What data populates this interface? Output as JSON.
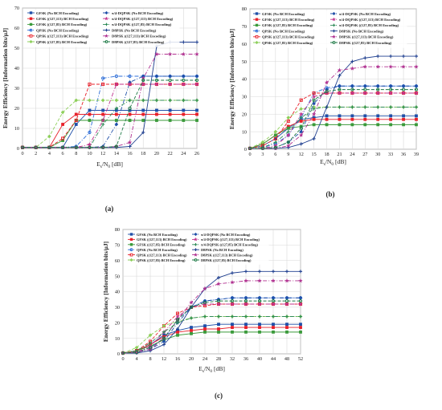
{
  "chart_data": [
    {
      "type": "line",
      "panel_label": "(a)",
      "ylabel": "Energy Efficiency [Information bits/μJ]",
      "xlabel": "E_s/N_0 [dB]",
      "xlabel_main": "E",
      "xlabel_sub1": "s",
      "xlabel_mid": "/N",
      "xlabel_sub2": "0",
      "xlabel_tail": " [dB]",
      "x": [
        0,
        2,
        4,
        6,
        8,
        10,
        12,
        14,
        16,
        18,
        20,
        22,
        24,
        26
      ],
      "xticks": [
        "0",
        "2",
        "4",
        "6",
        "8",
        "10",
        "12",
        "14",
        "16",
        "18",
        "20",
        "22",
        "24",
        "26"
      ],
      "xlim": [
        0,
        26
      ],
      "ylim": [
        0,
        70
      ],
      "yticks": [
        "0",
        "10",
        "20",
        "30",
        "40",
        "50",
        "60",
        "70"
      ],
      "grid": true,
      "legend_position": "top-left",
      "series": [
        {
          "name": "GFSK (No BCH Encoding)",
          "color": "#1f4fa8",
          "marker": "square",
          "dash": "solid",
          "values": [
            0.5,
            0.5,
            0.5,
            0.5,
            12,
            19,
            19,
            19,
            19,
            19,
            19,
            19,
            19,
            19
          ]
        },
        {
          "name": "GFSK ((127,113) BCH Encoding)",
          "color": "#e8202a",
          "marker": "square",
          "dash": "solid",
          "values": [
            0.5,
            0.5,
            0.5,
            12,
            17,
            17,
            17,
            17,
            17,
            17,
            17,
            17,
            17,
            17
          ]
        },
        {
          "name": "GFSK ((127,85) BCH Encoding)",
          "color": "#3a9a3a",
          "marker": "square",
          "dash": "solid",
          "values": [
            0.5,
            0.5,
            0.5,
            4,
            14,
            14,
            14,
            14,
            14,
            14,
            14,
            14,
            14,
            14
          ]
        },
        {
          "name": "QPSK (No BCH Encoding)",
          "color": "#2b6cd8",
          "marker": "circle",
          "dash": "dashdot",
          "values": [
            0.5,
            0.5,
            0.5,
            0.5,
            1,
            8,
            35,
            36,
            36,
            36,
            36,
            36,
            36,
            36
          ]
        },
        {
          "name": "QPSK ((127,113) BCH Encoding)",
          "color": "#e8202a",
          "marker": "square-open",
          "dash": "dashed",
          "values": [
            0.5,
            0.5,
            0.5,
            5,
            14,
            32,
            32,
            32,
            32,
            32,
            32,
            32,
            32,
            32
          ]
        },
        {
          "name": "QPSK ((127,85) BCH Encoding)",
          "color": "#8dcf5a",
          "marker": "diamond",
          "dash": "dashed",
          "values": [
            0.5,
            0.5,
            6,
            18,
            24,
            24,
            24,
            24,
            24,
            24,
            24,
            24,
            24,
            24
          ]
        },
        {
          "name": "π/4-DQPSK (No BCH Encoding)",
          "color": "#1f4fa8",
          "marker": "diamond",
          "dash": "dashdot",
          "values": [
            0.5,
            0.5,
            0.5,
            0.5,
            0.5,
            0.5,
            1,
            12,
            33,
            36,
            36,
            36,
            36,
            36
          ]
        },
        {
          "name": "π/4-DQPSK ((127,113) BCH Encoding)",
          "color": "#c0308c",
          "marker": "star",
          "dash": "dashdot",
          "values": [
            0.5,
            0.5,
            0.5,
            0.5,
            0.5,
            2,
            14,
            32,
            32,
            32,
            32,
            32,
            32,
            32
          ]
        },
        {
          "name": "π/4-DQPSK ((127,85) BCH Encoding)",
          "color": "#2e8b57",
          "marker": "plus",
          "dash": "dashdot",
          "values": [
            0.5,
            0.5,
            0.5,
            0.5,
            0.5,
            0.5,
            12,
            20,
            24,
            24,
            24,
            24,
            24,
            24
          ]
        },
        {
          "name": "D8PSK (No BCH Encoding)",
          "color": "#1f3f8f",
          "marker": "plus",
          "dash": "solid",
          "values": [
            0.5,
            0.5,
            0.5,
            0.5,
            0.5,
            0.5,
            0.5,
            0.5,
            1,
            8,
            51,
            53,
            53,
            53
          ]
        },
        {
          "name": "D8PSK ((127,113) BCH Encoding)",
          "color": "#b03090",
          "marker": "star",
          "dash": "dashdot",
          "values": [
            0.5,
            0.5,
            0.5,
            0.5,
            0.5,
            0.5,
            0.5,
            1,
            3,
            35,
            47,
            47,
            47,
            47
          ]
        },
        {
          "name": "D8PSK ((127,85) BCH Encoding)",
          "color": "#1e7a46",
          "marker": "circle",
          "dash": "dashed",
          "values": [
            0.5,
            0.5,
            0.5,
            0.5,
            0.5,
            0.5,
            0.5,
            1,
            20,
            34,
            34,
            34,
            34,
            34
          ]
        }
      ]
    },
    {
      "type": "line",
      "panel_label": "(b)",
      "ylabel": "Energy Efficiency [Information bits/μJ]",
      "xlabel": "E_s/N_0 [dB]",
      "xlabel_main": "E",
      "xlabel_sub1": "s",
      "xlabel_mid": "/N",
      "xlabel_sub2": "0",
      "xlabel_tail": " [dB]",
      "x": [
        0,
        3,
        6,
        9,
        12,
        15,
        18,
        21,
        24,
        27,
        30,
        33,
        36,
        39
      ],
      "xticks": [
        "0",
        "3",
        "6",
        "9",
        "12",
        "15",
        "18",
        "21",
        "24",
        "27",
        "30",
        "33",
        "36",
        "39"
      ],
      "xlim": [
        0,
        39
      ],
      "ylim": [
        0,
        80
      ],
      "yticks": [
        "0",
        "10",
        "20",
        "30",
        "40",
        "50",
        "60",
        "70",
        "80"
      ],
      "grid": true,
      "legend_position": "top-left",
      "series": [
        {
          "name": "GFSK (No BCH Encoding)",
          "color": "#1f4fa8",
          "marker": "square",
          "dash": "solid",
          "values": [
            0.5,
            2,
            6,
            12,
            17,
            18,
            19,
            19,
            19,
            19,
            19,
            19,
            19,
            19
          ]
        },
        {
          "name": "GFSK ((127,113) BCH Encoding)",
          "color": "#e8202a",
          "marker": "square",
          "dash": "solid",
          "values": [
            0.5,
            3,
            8,
            13,
            16,
            17,
            17,
            17,
            17,
            17,
            17,
            17,
            17,
            17
          ]
        },
        {
          "name": "GFSK ((127,85) BCH Encoding)",
          "color": "#3a9a3a",
          "marker": "square",
          "dash": "solid",
          "values": [
            0.5,
            3,
            8,
            12,
            13,
            14,
            14,
            14,
            14,
            14,
            14,
            14,
            14,
            14
          ]
        },
        {
          "name": "QPSK (No BCH Encoding)",
          "color": "#2b6cd8",
          "marker": "circle",
          "dash": "dashdot",
          "values": [
            0.5,
            1,
            3,
            8,
            18,
            32,
            35,
            36,
            36,
            36,
            36,
            36,
            36,
            36
          ]
        },
        {
          "name": "QPSK ((127,113) BCH Encoding)",
          "color": "#e8202a",
          "marker": "square-open",
          "dash": "dashed",
          "values": [
            0.5,
            2,
            6,
            16,
            28,
            32,
            32,
            32,
            32,
            32,
            32,
            32,
            32,
            32
          ]
        },
        {
          "name": "QPSK ((127,85) BCH Encoding)",
          "color": "#8dcf5a",
          "marker": "diamond",
          "dash": "dashed",
          "values": [
            0.5,
            4,
            10,
            18,
            23,
            24,
            24,
            24,
            24,
            24,
            24,
            24,
            24,
            24
          ]
        },
        {
          "name": "π/4-DQPSK (No BCH Encoding)",
          "color": "#1f4fa8",
          "marker": "diamond",
          "dash": "dashdot",
          "values": [
            0.5,
            0.5,
            1,
            4,
            10,
            26,
            34,
            36,
            36,
            36,
            36,
            36,
            36,
            36
          ]
        },
        {
          "name": "π/4-DQPSK ((127,113) BCH Encoding)",
          "color": "#c0308c",
          "marker": "star",
          "dash": "dashdot",
          "values": [
            0.5,
            0.5,
            2,
            8,
            20,
            30,
            32,
            32,
            32,
            32,
            32,
            32,
            32,
            32
          ]
        },
        {
          "name": "π/4-DQPSK ((127,85) BCH Encoding)",
          "color": "#2e8b57",
          "marker": "plus",
          "dash": "dashdot",
          "values": [
            0.5,
            1,
            4,
            10,
            18,
            23,
            24,
            24,
            24,
            24,
            24,
            24,
            24,
            24
          ]
        },
        {
          "name": "D8PSK (No BCH Encoding)",
          "color": "#1f3f8f",
          "marker": "plus",
          "dash": "solid",
          "values": [
            0.5,
            0.5,
            0.5,
            1,
            3,
            6,
            24,
            42,
            50,
            52,
            53,
            53,
            53,
            53
          ]
        },
        {
          "name": "D8PSK ((127,113) BCH Encoding)",
          "color": "#b03090",
          "marker": "star",
          "dash": "dashdot",
          "values": [
            0.5,
            0.5,
            0.5,
            2,
            8,
            20,
            38,
            45,
            46,
            47,
            47,
            47,
            47,
            47
          ]
        },
        {
          "name": "D8PSK ((127,85) BCH Encoding)",
          "color": "#1e7a46",
          "marker": "circle",
          "dash": "dashed",
          "values": [
            0.5,
            0.5,
            1,
            4,
            12,
            28,
            33,
            34,
            34,
            34,
            34,
            34,
            34,
            34
          ]
        }
      ]
    },
    {
      "type": "line",
      "panel_label": "(c)",
      "ylabel": "Energy Efficiency [Information bits/μJ]",
      "xlabel": "E_s/N_0 [dB]",
      "xlabel_main": "E",
      "xlabel_sub1": "s",
      "xlabel_mid": "/N",
      "xlabel_sub2": "0",
      "xlabel_tail": " [dB]",
      "x": [
        0,
        4,
        8,
        12,
        16,
        20,
        24,
        28,
        32,
        36,
        40,
        44,
        48,
        52
      ],
      "xticks": [
        "0",
        "4",
        "8",
        "12",
        "16",
        "20",
        "24",
        "28",
        "32",
        "36",
        "40",
        "44",
        "48",
        "52"
      ],
      "xlim": [
        0,
        52
      ],
      "ylim": [
        0,
        80
      ],
      "yticks": [
        "0",
        "10",
        "20",
        "30",
        "40",
        "50",
        "60",
        "70",
        "80"
      ],
      "grid": true,
      "legend_position": "top-left",
      "series": [
        {
          "name": "GFSK (No BCH Encoding)",
          "color": "#1f4fa8",
          "marker": "square",
          "dash": "solid",
          "values": [
            0.5,
            2,
            6,
            12,
            15,
            17,
            18,
            19,
            19,
            19,
            19,
            19,
            19,
            19
          ]
        },
        {
          "name": "GFSK ((127,113) BCH Encoding)",
          "color": "#e8202a",
          "marker": "square",
          "dash": "solid",
          "values": [
            0.5,
            2,
            6,
            11,
            14,
            15,
            16,
            16,
            17,
            17,
            17,
            17,
            17,
            17
          ]
        },
        {
          "name": "GFSK ((127,85) BCH Encoding)",
          "color": "#3a9a3a",
          "marker": "square",
          "dash": "solid",
          "values": [
            0.5,
            2,
            5,
            9,
            12,
            13,
            14,
            14,
            14,
            14,
            14,
            14,
            14,
            14
          ]
        },
        {
          "name": "QPSK (No BCH Encoding)",
          "color": "#2b6cd8",
          "marker": "circle",
          "dash": "dashdot",
          "values": [
            0.5,
            1,
            4,
            10,
            22,
            30,
            34,
            35,
            36,
            36,
            36,
            36,
            36,
            36
          ]
        },
        {
          "name": "QPSK ((127,113) BCH Encoding)",
          "color": "#e8202a",
          "marker": "square-open",
          "dash": "dashed",
          "values": [
            0.5,
            2,
            8,
            18,
            26,
            30,
            31,
            32,
            32,
            32,
            32,
            32,
            32,
            32
          ]
        },
        {
          "name": "QPSK ((127,85) BCH Encoding)",
          "color": "#8dcf5a",
          "marker": "diamond",
          "dash": "dashed",
          "values": [
            0.5,
            4,
            12,
            18,
            21,
            23,
            24,
            24,
            24,
            24,
            24,
            24,
            24,
            24
          ]
        },
        {
          "name": "π/4-DQPSK (No BCH Encoding)",
          "color": "#1f4fa8",
          "marker": "diamond",
          "dash": "dashdot",
          "values": [
            0.5,
            1,
            3,
            8,
            20,
            30,
            34,
            35,
            36,
            36,
            36,
            36,
            36,
            36
          ]
        },
        {
          "name": "π/4-DQPSK ((127,113) BCH Encoding)",
          "color": "#c0308c",
          "marker": "star",
          "dash": "dashdot",
          "values": [
            0.5,
            1,
            5,
            14,
            24,
            30,
            32,
            32,
            32,
            32,
            32,
            32,
            32,
            32
          ]
        },
        {
          "name": "π/4-DQPSK ((127,85) BCH Encoding)",
          "color": "#2e8b57",
          "marker": "plus",
          "dash": "dashdot",
          "values": [
            0.5,
            2,
            7,
            14,
            20,
            23,
            24,
            24,
            24,
            24,
            24,
            24,
            24,
            24
          ]
        },
        {
          "name": "D8PSK (No BCH Encoding)",
          "color": "#1f3f8f",
          "marker": "plus",
          "dash": "solid",
          "values": [
            0.5,
            0.5,
            2,
            6,
            16,
            30,
            42,
            49,
            52,
            53,
            53,
            53,
            53,
            53
          ]
        },
        {
          "name": "D8PSK ((127,113) BCH Encoding)",
          "color": "#b03090",
          "marker": "star",
          "dash": "dashdot",
          "values": [
            0.5,
            1,
            3,
            10,
            22,
            33,
            42,
            45,
            46,
            47,
            47,
            47,
            47,
            47
          ]
        },
        {
          "name": "D8PSK ((127,85) BCH Encoding)",
          "color": "#1e7a46",
          "marker": "circle",
          "dash": "dashed",
          "values": [
            0.5,
            1,
            4,
            10,
            22,
            30,
            33,
            34,
            34,
            34,
            34,
            34,
            34,
            34
          ]
        }
      ]
    }
  ]
}
